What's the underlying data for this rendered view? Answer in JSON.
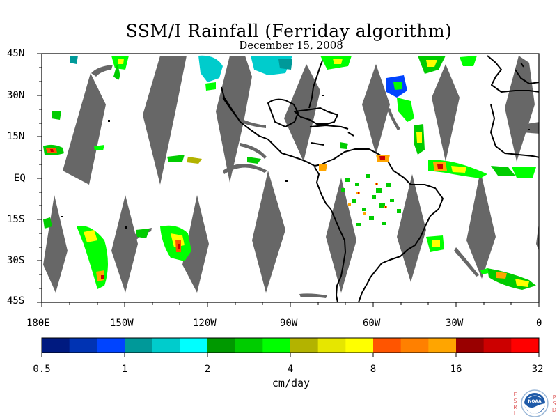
{
  "title": "SSM/I Rainfall (Ferriday algorithm)",
  "subtitle": "December 15, 2008",
  "latitude_labels": [
    "45N",
    "30N",
    "15N",
    "EQ",
    "15S",
    "30S",
    "45S"
  ],
  "longitude_labels": [
    "180E",
    "150W",
    "120W",
    "90W",
    "60W",
    "30W",
    "0"
  ],
  "colorbar": {
    "ticks": [
      "0.5",
      "1",
      "2",
      "4",
      "8",
      "16",
      "32"
    ],
    "units": "cm/day",
    "colors": [
      "#001a80",
      "#0033b3",
      "#0044ff",
      "#009999",
      "#00cccc",
      "#00ffff",
      "#009900",
      "#00cc00",
      "#00ff00",
      "#b3b300",
      "#e6e600",
      "#ffff00",
      "#ff5500",
      "#ff8000",
      "#ffa500",
      "#990000",
      "#cc0000",
      "#ff0000"
    ]
  },
  "logo": {
    "left_letters": [
      "E",
      "S",
      "R",
      "L"
    ],
    "right_letters": [
      "P",
      "S",
      "D"
    ],
    "center_text": "NOAA"
  },
  "colors": {
    "swath_gap": "#676767",
    "coastline": "#000000",
    "background": "#ffffff"
  }
}
